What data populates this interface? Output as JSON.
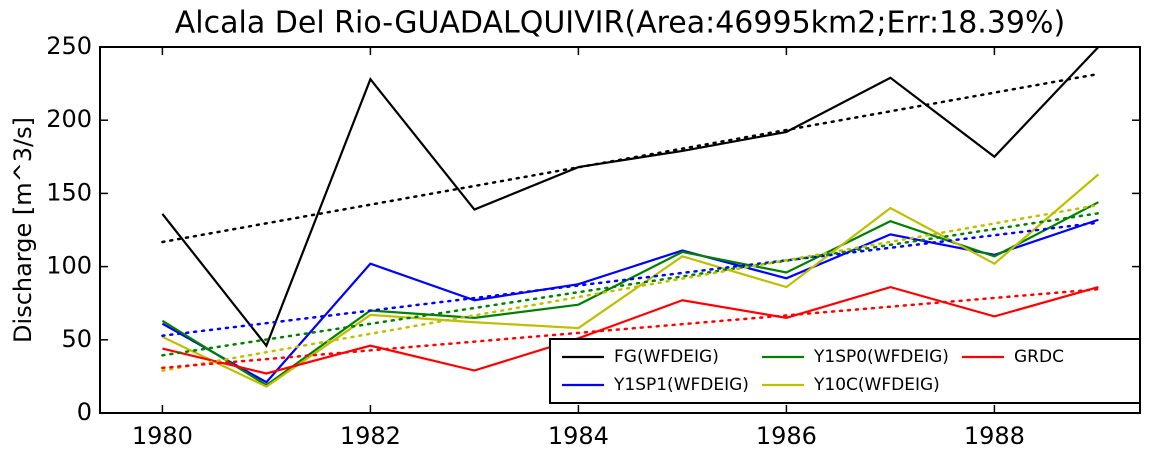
{
  "chart_data": {
    "type": "line",
    "title": "Alcala Del Rio-GUADALQUIVIR(Area:46995km2;Err:18.39%)",
    "y_label": "Discharge [m^3/s]",
    "x": [
      1980,
      1981,
      1982,
      1983,
      1984,
      1985,
      1986,
      1987,
      1988,
      1989
    ],
    "series": [
      {
        "name": "FG(WFDEIG)",
        "color": "#000000",
        "values": [
          136,
          46,
          228,
          139,
          168,
          179,
          192,
          229,
          175,
          250
        ]
      },
      {
        "name": "Y1SP1(WFDEIG)",
        "color": "#0000ff",
        "values": [
          61,
          21,
          102,
          77,
          88,
          111,
          92,
          122,
          108,
          132
        ]
      },
      {
        "name": "Y1SP0(WFDEIG)",
        "color": "#008000",
        "values": [
          63,
          19,
          70,
          65,
          74,
          110,
          96,
          131,
          107,
          144
        ]
      },
      {
        "name": "Y10C(WFDEIG)",
        "color": "#bfbf00",
        "values": [
          52,
          18,
          67,
          62,
          58,
          107,
          86,
          140,
          102,
          163
        ]
      },
      {
        "name": "GRDC",
        "color": "#ff0000",
        "values": [
          44,
          27,
          46,
          29,
          51,
          77,
          65,
          86,
          66,
          86
        ]
      }
    ],
    "xlim": [
      1979.4,
      1989.4
    ],
    "xticks": [
      1980,
      1982,
      1984,
      1986,
      1988
    ],
    "ylim": [
      0,
      250
    ],
    "yticks": [
      0,
      50,
      100,
      150,
      200,
      250
    ],
    "trendlines": true,
    "legend": "lower right",
    "legend_columns": 3
  }
}
